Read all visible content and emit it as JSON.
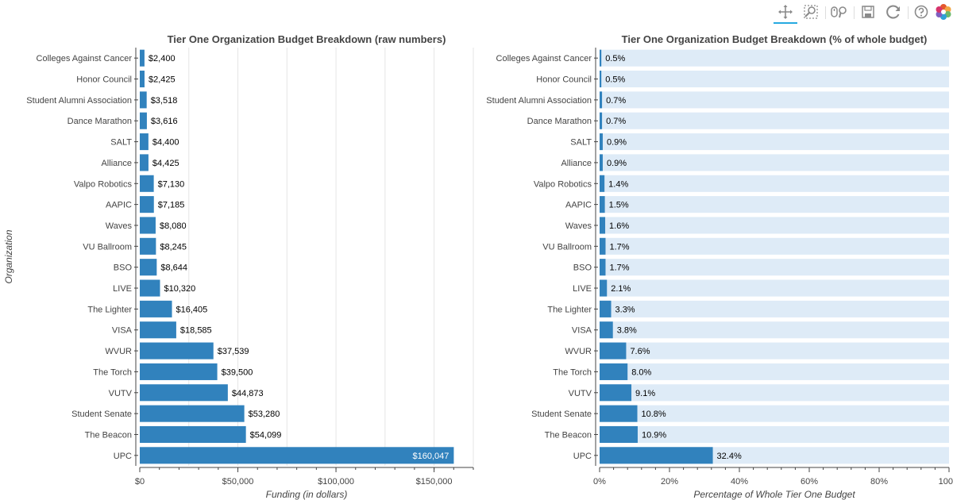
{
  "toolbar": {
    "items": [
      {
        "name": "pan-tool-button",
        "icon": "pan-icon",
        "active": true
      },
      {
        "name": "box-zoom-tool-button",
        "icon": "box-zoom-icon",
        "active": false
      },
      {
        "name": "wheel-zoom-tool-button",
        "icon": "wheel-zoom-icon",
        "active": false
      },
      {
        "name": "save-tool-button",
        "icon": "save-icon",
        "active": false
      },
      {
        "name": "reset-tool-button",
        "icon": "reset-icon",
        "active": false
      },
      {
        "name": "help-tool-button",
        "icon": "help-icon",
        "active": false
      },
      {
        "name": "bokeh-logo",
        "icon": "bokeh-logo-icon",
        "active": false
      }
    ]
  },
  "colors": {
    "bar": "#3182bd",
    "track": "#deebf7",
    "grid": "#e5e5e5",
    "axis": "#444444",
    "title": "#444444"
  },
  "chart_data": [
    {
      "type": "bar",
      "orientation": "horizontal",
      "title": "Tier One Organization Budget Breakdown (raw numbers)",
      "xlabel": "Funding (in dollars)",
      "ylabel": "Organization",
      "xlim": [
        0,
        170000
      ],
      "grid": true,
      "xticks": [
        {
          "value": 0,
          "label": "$0"
        },
        {
          "value": 50000,
          "label": "$50,000"
        },
        {
          "value": 100000,
          "label": "$100,000"
        },
        {
          "value": 150000,
          "label": "$150,000"
        }
      ],
      "categories": [
        "Colleges Against Cancer",
        "Honor Council",
        "Student Alumni Association",
        "Dance Marathon",
        "SALT",
        "Alliance",
        "Valpo Robotics",
        "AAPIC",
        "Waves",
        "VU Ballroom",
        "BSO",
        "LIVE",
        "The Lighter",
        "VISA",
        "WVUR",
        "The Torch",
        "VUTV",
        "Student Senate",
        "The Beacon",
        "UPC"
      ],
      "values": [
        2400,
        2425,
        3518,
        3616,
        4400,
        4425,
        7130,
        7185,
        8080,
        8245,
        8644,
        10320,
        16405,
        18585,
        37539,
        39500,
        44873,
        53280,
        54099,
        160047
      ],
      "labels": [
        "$2,400",
        "$2,425",
        "$3,518",
        "$3,616",
        "$4,400",
        "$4,425",
        "$7,130",
        "$7,185",
        "$8,080",
        "$8,245",
        "$8,644",
        "$10,320",
        "$16,405",
        "$18,585",
        "$37,539",
        "$39,500",
        "$44,873",
        "$53,280",
        "$54,099",
        "$160,047"
      ]
    },
    {
      "type": "bar",
      "orientation": "horizontal",
      "title": "Tier One Organization Budget Breakdown (% of whole budget)",
      "xlabel": "Percentage of Whole Tier One Budget",
      "ylabel": "",
      "xlim": [
        0,
        100
      ],
      "grid": false,
      "background_track": true,
      "xticks": [
        {
          "value": 0,
          "label": "0%"
        },
        {
          "value": 20,
          "label": "20%"
        },
        {
          "value": 40,
          "label": "40%"
        },
        {
          "value": 60,
          "label": "60%"
        },
        {
          "value": 80,
          "label": "80%"
        },
        {
          "value": 100,
          "label": "100"
        }
      ],
      "categories": [
        "Colleges Against Cancer",
        "Honor Council",
        "Student Alumni Association",
        "Dance Marathon",
        "SALT",
        "Alliance",
        "Valpo Robotics",
        "AAPIC",
        "Waves",
        "VU Ballroom",
        "BSO",
        "LIVE",
        "The Lighter",
        "VISA",
        "WVUR",
        "The Torch",
        "VUTV",
        "Student Senate",
        "The Beacon",
        "UPC"
      ],
      "values": [
        0.5,
        0.5,
        0.7,
        0.7,
        0.9,
        0.9,
        1.4,
        1.5,
        1.6,
        1.7,
        1.7,
        2.1,
        3.3,
        3.8,
        7.6,
        8.0,
        9.1,
        10.8,
        10.9,
        32.4
      ],
      "labels": [
        "0.5%",
        "0.5%",
        "0.7%",
        "0.7%",
        "0.9%",
        "0.9%",
        "1.4%",
        "1.5%",
        "1.6%",
        "1.7%",
        "1.7%",
        "2.1%",
        "3.3%",
        "3.8%",
        "7.6%",
        "8.0%",
        "9.1%",
        "10.8%",
        "10.9%",
        "32.4%"
      ]
    }
  ]
}
